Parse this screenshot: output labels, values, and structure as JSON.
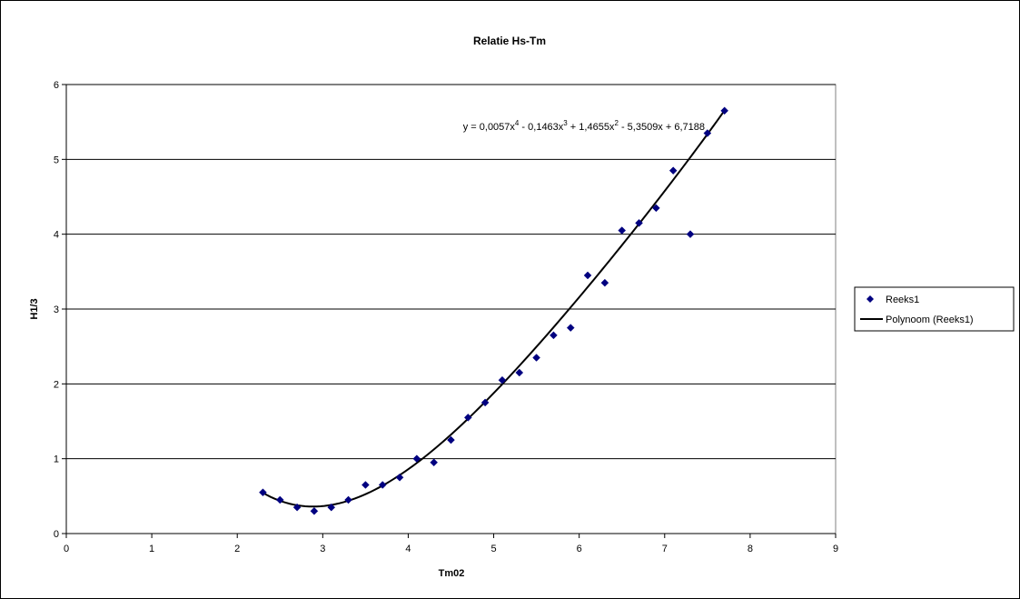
{
  "chart_data": {
    "type": "scatter",
    "title": "Relatie Hs-Tm",
    "xlabel": "Tm02",
    "ylabel": "H1/3",
    "xlim": [
      0,
      9
    ],
    "ylim": [
      0,
      6
    ],
    "x_ticks": [
      "0",
      "1",
      "2",
      "3",
      "4",
      "5",
      "6",
      "7",
      "8",
      "9"
    ],
    "y_ticks": [
      "0",
      "1",
      "2",
      "3",
      "4",
      "5",
      "6"
    ],
    "grid": "horizontal",
    "legend_position": "right",
    "series": [
      {
        "name": "Reeks1",
        "marker": "diamond",
        "color": "#000080",
        "points": [
          [
            2.3,
            0.55
          ],
          [
            2.5,
            0.45
          ],
          [
            2.7,
            0.35
          ],
          [
            2.9,
            0.3
          ],
          [
            3.1,
            0.35
          ],
          [
            3.3,
            0.45
          ],
          [
            3.5,
            0.65
          ],
          [
            3.7,
            0.65
          ],
          [
            3.9,
            0.75
          ],
          [
            4.1,
            1.0
          ],
          [
            4.3,
            0.95
          ],
          [
            4.5,
            1.25
          ],
          [
            4.7,
            1.55
          ],
          [
            4.9,
            1.75
          ],
          [
            5.1,
            2.05
          ],
          [
            5.3,
            2.15
          ],
          [
            5.5,
            2.35
          ],
          [
            5.7,
            2.65
          ],
          [
            5.9,
            2.75
          ],
          [
            6.1,
            3.45
          ],
          [
            6.3,
            3.35
          ],
          [
            6.5,
            4.05
          ],
          [
            6.7,
            4.15
          ],
          [
            6.9,
            4.35
          ],
          [
            7.1,
            4.85
          ],
          [
            7.3,
            4.0
          ],
          [
            7.5,
            5.35
          ],
          [
            7.7,
            5.65
          ]
        ]
      }
    ],
    "trendline": {
      "name": "Polynoom (Reeks1)",
      "color": "#000000",
      "x_range": [
        2.3,
        7.7
      ],
      "coefficients": [
        6.7188,
        -5.3509,
        1.4655,
        -0.1463,
        0.0057
      ],
      "equation": {
        "parts": [
          {
            "text": "y = 0,0057x"
          },
          {
            "sup": "4"
          },
          {
            "text": " - 0,1463x"
          },
          {
            "sup": "3"
          },
          {
            "text": " + 1,4655x"
          },
          {
            "sup": "2"
          },
          {
            "text": " - 5,3509x + 6,7188"
          }
        ]
      }
    }
  }
}
